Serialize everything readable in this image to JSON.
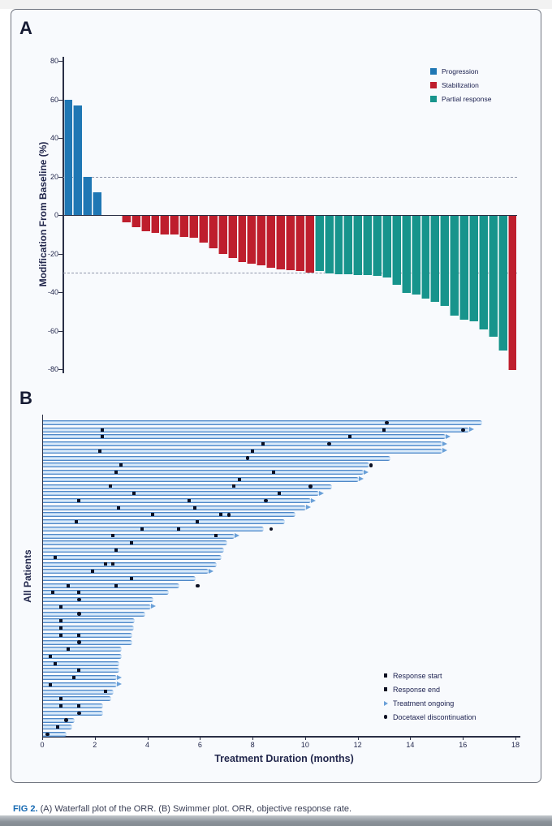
{
  "figure": {
    "panel_a_label": "A",
    "panel_b_label": "B",
    "caption_prefix": "FIG 2.",
    "caption_text": " (A) Waterfall plot of the ORR. (B) Swimmer plot. ORR, objective response rate."
  },
  "colors": {
    "progression": "#1f77b4",
    "stabilization": "#be1e2d",
    "partial_response": "#17948c",
    "none": "transparent",
    "swimmer_bar_edge": "#4a86c4",
    "marker": "#0c1022",
    "axis": "#2a2f45",
    "caption_accent": "#1669b2"
  },
  "chart_data": [
    {
      "type": "bar",
      "title": "Waterfall plot of the ORR",
      "ylabel": "Modification From Baseline (%)",
      "ylim": [
        -80,
        80
      ],
      "yticks": [
        80,
        60,
        40,
        20,
        0,
        -20,
        -40,
        -60,
        -80
      ],
      "reference_lines": [
        20,
        -30
      ],
      "grid": false,
      "legend_position": "top-right",
      "legend": [
        {
          "label": "Progression",
          "group": "progression"
        },
        {
          "label": "Stabilization",
          "group": "stabilization"
        },
        {
          "label": "Partial response",
          "group": "partial_response"
        }
      ],
      "bars": [
        {
          "v": 60,
          "g": "progression"
        },
        {
          "v": 57,
          "g": "progression"
        },
        {
          "v": 20,
          "g": "progression"
        },
        {
          "v": 12,
          "g": "progression"
        },
        {
          "v": 0,
          "g": "none"
        },
        {
          "v": 0,
          "g": "none"
        },
        {
          "v": -3.5,
          "g": "stabilization"
        },
        {
          "v": -6,
          "g": "stabilization"
        },
        {
          "v": -8,
          "g": "stabilization"
        },
        {
          "v": -9,
          "g": "stabilization"
        },
        {
          "v": -10,
          "g": "stabilization"
        },
        {
          "v": -10,
          "g": "stabilization"
        },
        {
          "v": -11,
          "g": "stabilization"
        },
        {
          "v": -11.5,
          "g": "stabilization"
        },
        {
          "v": -14,
          "g": "stabilization"
        },
        {
          "v": -17,
          "g": "stabilization"
        },
        {
          "v": -20,
          "g": "stabilization"
        },
        {
          "v": -22,
          "g": "stabilization"
        },
        {
          "v": -24,
          "g": "stabilization"
        },
        {
          "v": -25,
          "g": "stabilization"
        },
        {
          "v": -26,
          "g": "stabilization"
        },
        {
          "v": -27,
          "g": "stabilization"
        },
        {
          "v": -28,
          "g": "stabilization"
        },
        {
          "v": -28.5,
          "g": "stabilization"
        },
        {
          "v": -29,
          "g": "stabilization"
        },
        {
          "v": -29.5,
          "g": "stabilization"
        },
        {
          "v": -29,
          "g": "partial_response"
        },
        {
          "v": -30,
          "g": "partial_response"
        },
        {
          "v": -30.5,
          "g": "partial_response"
        },
        {
          "v": -30.5,
          "g": "partial_response"
        },
        {
          "v": -31,
          "g": "partial_response"
        },
        {
          "v": -31,
          "g": "partial_response"
        },
        {
          "v": -31.5,
          "g": "partial_response"
        },
        {
          "v": -32,
          "g": "partial_response"
        },
        {
          "v": -36,
          "g": "partial_response"
        },
        {
          "v": -40,
          "g": "partial_response"
        },
        {
          "v": -41,
          "g": "partial_response"
        },
        {
          "v": -43,
          "g": "partial_response"
        },
        {
          "v": -45,
          "g": "partial_response"
        },
        {
          "v": -47,
          "g": "partial_response"
        },
        {
          "v": -52,
          "g": "partial_response"
        },
        {
          "v": -54,
          "g": "partial_response"
        },
        {
          "v": -55,
          "g": "partial_response"
        },
        {
          "v": -59,
          "g": "partial_response"
        },
        {
          "v": -63,
          "g": "partial_response"
        },
        {
          "v": -70,
          "g": "partial_response"
        },
        {
          "v": -80,
          "g": "stabilization"
        }
      ]
    },
    {
      "type": "swimmer",
      "title": "Swimmer plot",
      "xlabel": "Treatment Duration (months)",
      "ylabel": "All Patients",
      "xlim": [
        0,
        18
      ],
      "xticks": [
        0,
        2,
        4,
        6,
        8,
        10,
        12,
        14,
        16,
        18
      ],
      "legend_position": "bottom-right",
      "legend": [
        {
          "label": "Response start",
          "marker": "square"
        },
        {
          "label": "Response end",
          "marker": "square"
        },
        {
          "label": "Treatment ongoing",
          "marker": "arrow"
        },
        {
          "label": "Docetaxel discontinuation",
          "marker": "dot"
        }
      ],
      "lanes": [
        {
          "len": 16.7,
          "ongoing": false,
          "markers": [
            {
              "t": 13.1,
              "k": "disc"
            }
          ]
        },
        {
          "len": 16.2,
          "ongoing": true,
          "markers": [
            {
              "t": 2.3,
              "k": "start"
            },
            {
              "t": 13.0,
              "k": "end"
            },
            {
              "t": 16.0,
              "k": "disc"
            }
          ]
        },
        {
          "len": 15.3,
          "ongoing": true,
          "markers": [
            {
              "t": 2.3,
              "k": "start"
            },
            {
              "t": 11.7,
              "k": "end"
            }
          ]
        },
        {
          "len": 15.2,
          "ongoing": true,
          "markers": [
            {
              "t": 8.4,
              "k": "end"
            },
            {
              "t": 10.9,
              "k": "disc"
            }
          ]
        },
        {
          "len": 15.2,
          "ongoing": true,
          "markers": [
            {
              "t": 2.2,
              "k": "start"
            },
            {
              "t": 8.0,
              "k": "end"
            }
          ]
        },
        {
          "len": 13.2,
          "ongoing": false,
          "markers": [
            {
              "t": 7.8,
              "k": "disc"
            }
          ]
        },
        {
          "len": 12.4,
          "ongoing": false,
          "markers": [
            {
              "t": 3.0,
              "k": "start"
            },
            {
              "t": 12.5,
              "k": "disc"
            }
          ]
        },
        {
          "len": 12.2,
          "ongoing": true,
          "markers": [
            {
              "t": 2.8,
              "k": "start"
            },
            {
              "t": 8.8,
              "k": "end"
            }
          ]
        },
        {
          "len": 12.0,
          "ongoing": true,
          "markers": [
            {
              "t": 7.5,
              "k": "end"
            }
          ]
        },
        {
          "len": 11.0,
          "ongoing": false,
          "markers": [
            {
              "t": 2.6,
              "k": "start"
            },
            {
              "t": 7.3,
              "k": "end"
            },
            {
              "t": 10.2,
              "k": "disc"
            }
          ]
        },
        {
          "len": 10.5,
          "ongoing": true,
          "markers": [
            {
              "t": 3.5,
              "k": "start"
            },
            {
              "t": 9.0,
              "k": "end"
            }
          ]
        },
        {
          "len": 10.2,
          "ongoing": true,
          "markers": [
            {
              "t": 1.4,
              "k": "start"
            },
            {
              "t": 5.6,
              "k": "end"
            },
            {
              "t": 8.5,
              "k": "disc"
            }
          ]
        },
        {
          "len": 10.0,
          "ongoing": true,
          "markers": [
            {
              "t": 2.9,
              "k": "start"
            },
            {
              "t": 5.8,
              "k": "end"
            }
          ]
        },
        {
          "len": 9.6,
          "ongoing": false,
          "markers": [
            {
              "t": 4.2,
              "k": "start"
            },
            {
              "t": 6.8,
              "k": "end"
            },
            {
              "t": 7.1,
              "k": "disc"
            }
          ]
        },
        {
          "len": 9.2,
          "ongoing": false,
          "markers": [
            {
              "t": 1.3,
              "k": "start"
            },
            {
              "t": 5.9,
              "k": "end"
            }
          ]
        },
        {
          "len": 8.4,
          "ongoing": false,
          "markers": [
            {
              "t": 3.8,
              "k": "start"
            },
            {
              "t": 5.2,
              "k": "end"
            },
            {
              "t": 8.7,
              "k": "disc"
            }
          ]
        },
        {
          "len": 7.3,
          "ongoing": true,
          "markers": [
            {
              "t": 2.7,
              "k": "start"
            },
            {
              "t": 6.6,
              "k": "end"
            }
          ]
        },
        {
          "len": 7.0,
          "ongoing": false,
          "markers": [
            {
              "t": 3.4,
              "k": "end"
            }
          ]
        },
        {
          "len": 6.9,
          "ongoing": false,
          "markers": [
            {
              "t": 2.8,
              "k": "start"
            }
          ]
        },
        {
          "len": 6.8,
          "ongoing": false,
          "markers": [
            {
              "t": 0.5,
              "k": "start"
            }
          ]
        },
        {
          "len": 6.6,
          "ongoing": false,
          "markers": [
            {
              "t": 2.4,
              "k": "start"
            },
            {
              "t": 2.7,
              "k": "end"
            }
          ]
        },
        {
          "len": 6.3,
          "ongoing": true,
          "markers": [
            {
              "t": 1.9,
              "k": "start"
            }
          ]
        },
        {
          "len": 5.8,
          "ongoing": false,
          "markers": [
            {
              "t": 3.4,
              "k": "end"
            }
          ]
        },
        {
          "len": 5.2,
          "ongoing": false,
          "markers": [
            {
              "t": 1.0,
              "k": "start"
            },
            {
              "t": 2.8,
              "k": "end"
            },
            {
              "t": 5.9,
              "k": "disc"
            }
          ]
        },
        {
          "len": 4.8,
          "ongoing": false,
          "markers": [
            {
              "t": 0.4,
              "k": "start"
            },
            {
              "t": 1.4,
              "k": "end"
            }
          ]
        },
        {
          "len": 4.2,
          "ongoing": false,
          "markers": [
            {
              "t": 1.4,
              "k": "disc"
            }
          ]
        },
        {
          "len": 4.1,
          "ongoing": true,
          "markers": [
            {
              "t": 0.7,
              "k": "start"
            }
          ]
        },
        {
          "len": 3.9,
          "ongoing": false,
          "markers": [
            {
              "t": 1.4,
              "k": "disc"
            }
          ]
        },
        {
          "len": 3.5,
          "ongoing": false,
          "markers": [
            {
              "t": 0.7,
              "k": "start"
            }
          ]
        },
        {
          "len": 3.45,
          "ongoing": false,
          "markers": [
            {
              "t": 0.7,
              "k": "start"
            }
          ]
        },
        {
          "len": 3.4,
          "ongoing": false,
          "markers": [
            {
              "t": 0.7,
              "k": "start"
            },
            {
              "t": 1.4,
              "k": "end"
            }
          ]
        },
        {
          "len": 3.4,
          "ongoing": false,
          "markers": [
            {
              "t": 1.4,
              "k": "disc"
            }
          ]
        },
        {
          "len": 3.0,
          "ongoing": false,
          "markers": [
            {
              "t": 1.0,
              "k": "start"
            }
          ]
        },
        {
          "len": 3.0,
          "ongoing": false,
          "markers": [
            {
              "t": 0.3,
              "k": "start"
            }
          ]
        },
        {
          "len": 2.9,
          "ongoing": false,
          "markers": [
            {
              "t": 0.5,
              "k": "start"
            }
          ]
        },
        {
          "len": 2.9,
          "ongoing": false,
          "markers": [
            {
              "t": 1.4,
              "k": "end"
            }
          ]
        },
        {
          "len": 2.8,
          "ongoing": true,
          "markers": [
            {
              "t": 1.2,
              "k": "end"
            }
          ]
        },
        {
          "len": 2.8,
          "ongoing": true,
          "markers": [
            {
              "t": 0.3,
              "k": "start"
            }
          ]
        },
        {
          "len": 2.7,
          "ongoing": false,
          "markers": [
            {
              "t": 2.4,
              "k": "end"
            }
          ]
        },
        {
          "len": 2.6,
          "ongoing": false,
          "markers": [
            {
              "t": 0.7,
              "k": "start"
            }
          ]
        },
        {
          "len": 2.3,
          "ongoing": false,
          "markers": [
            {
              "t": 0.7,
              "k": "start"
            },
            {
              "t": 1.4,
              "k": "end"
            }
          ]
        },
        {
          "len": 2.3,
          "ongoing": false,
          "markers": [
            {
              "t": 1.4,
              "k": "disc"
            }
          ]
        },
        {
          "len": 1.2,
          "ongoing": false,
          "markers": [
            {
              "t": 0.9,
              "k": "disc"
            }
          ]
        },
        {
          "len": 1.1,
          "ongoing": false,
          "markers": [
            {
              "t": 0.6,
              "k": "start"
            }
          ]
        },
        {
          "len": 0.9,
          "ongoing": false,
          "markers": [
            {
              "t": 0.2,
              "k": "disc"
            }
          ]
        }
      ]
    }
  ]
}
